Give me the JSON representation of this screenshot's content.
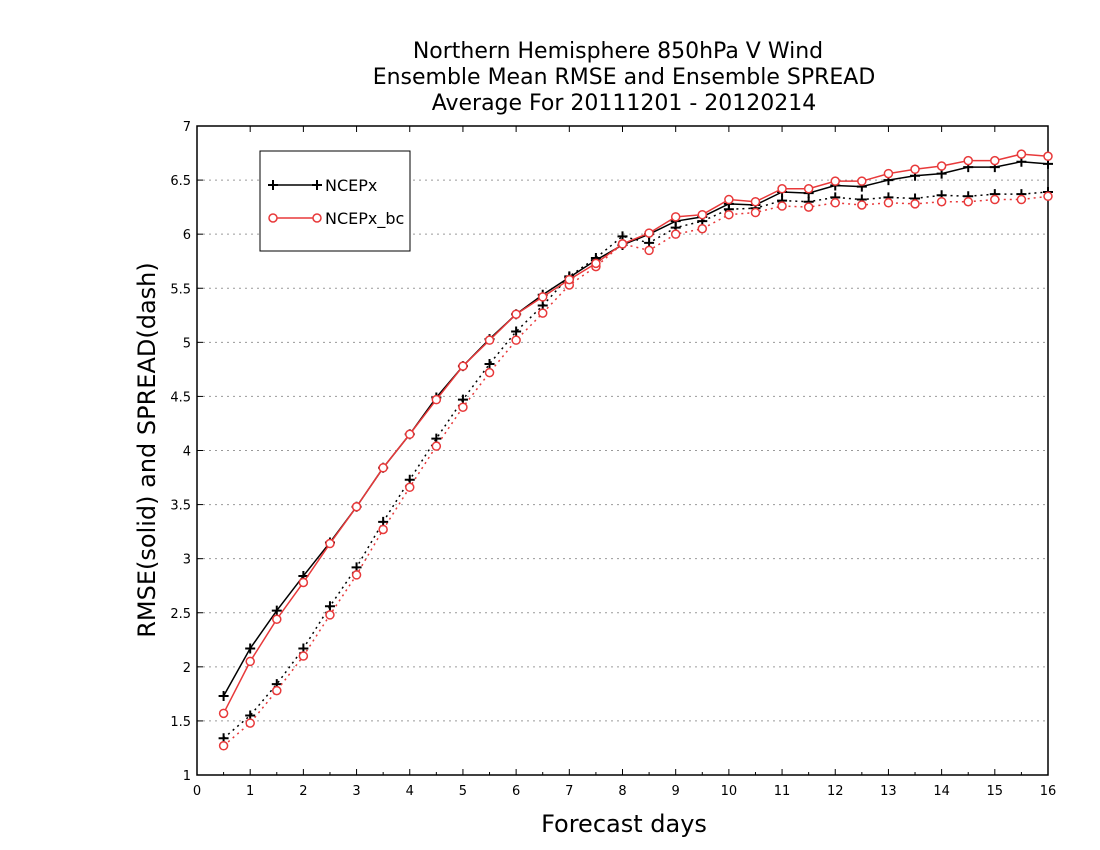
{
  "chart_data": {
    "type": "line",
    "title_lines": [
      "Northern Hemisphere 850hPa V Wind",
      "Ensemble Mean RMSE and Ensemble SPREAD",
      "Average For 20111201 - 20120214"
    ],
    "xlabel": "Forecast days",
    "ylabel": "RMSE(solid) and SPREAD(dash)",
    "xlim": [
      0,
      16
    ],
    "ylim": [
      1,
      7
    ],
    "xticks": [
      "0",
      "1",
      "2",
      "3",
      "4",
      "5",
      "6",
      "7",
      "8",
      "9",
      "10",
      "11",
      "12",
      "13",
      "14",
      "15",
      "16"
    ],
    "yticks": [
      "1",
      "1.5",
      "2",
      "2.5",
      "3",
      "3.5",
      "4",
      "4.5",
      "5",
      "5.5",
      "6",
      "6.5",
      "7"
    ],
    "grid": "horizontal dotted",
    "legend_position": "top-left",
    "x": [
      0.5,
      1,
      1.5,
      2,
      2.5,
      3,
      3.5,
      4,
      4.5,
      5,
      5.5,
      6,
      6.5,
      7,
      7.5,
      8,
      8.5,
      9,
      9.5,
      10,
      10.5,
      11,
      11.5,
      12,
      12.5,
      13,
      13.5,
      14,
      14.5,
      15,
      15.5,
      16
    ],
    "series": [
      {
        "name": "NCEPx",
        "color": "#000000",
        "marker": "plus",
        "rmse": [
          1.73,
          2.17,
          2.52,
          2.84,
          3.15,
          3.48,
          3.84,
          4.15,
          4.49,
          4.78,
          5.03,
          5.26,
          5.44,
          5.6,
          5.76,
          5.9,
          6.0,
          6.12,
          6.16,
          6.28,
          6.27,
          6.39,
          6.38,
          6.45,
          6.44,
          6.5,
          6.54,
          6.56,
          6.62,
          6.62,
          6.67,
          6.65
        ],
        "spread": [
          1.34,
          1.55,
          1.84,
          2.17,
          2.56,
          2.92,
          3.34,
          3.73,
          4.11,
          4.47,
          4.8,
          5.1,
          5.34,
          5.61,
          5.78,
          5.98,
          5.92,
          6.06,
          6.12,
          6.23,
          6.24,
          6.31,
          6.3,
          6.34,
          6.32,
          6.34,
          6.33,
          6.36,
          6.35,
          6.37,
          6.37,
          6.39
        ]
      },
      {
        "name": "NCEPx_bc",
        "color": "#e8393a",
        "marker": "circle",
        "rmse": [
          1.57,
          2.05,
          2.44,
          2.78,
          3.14,
          3.48,
          3.84,
          4.15,
          4.47,
          4.78,
          5.02,
          5.26,
          5.42,
          5.58,
          5.73,
          5.91,
          6.01,
          6.16,
          6.18,
          6.32,
          6.3,
          6.42,
          6.42,
          6.49,
          6.49,
          6.56,
          6.6,
          6.63,
          6.68,
          6.68,
          6.74,
          6.72
        ],
        "spread": [
          1.27,
          1.48,
          1.78,
          2.1,
          2.48,
          2.85,
          3.27,
          3.66,
          4.04,
          4.4,
          4.72,
          5.02,
          5.27,
          5.53,
          5.7,
          5.91,
          5.85,
          6.0,
          6.05,
          6.18,
          6.2,
          6.26,
          6.25,
          6.29,
          6.27,
          6.29,
          6.28,
          6.3,
          6.3,
          6.32,
          6.32,
          6.35
        ]
      }
    ]
  }
}
